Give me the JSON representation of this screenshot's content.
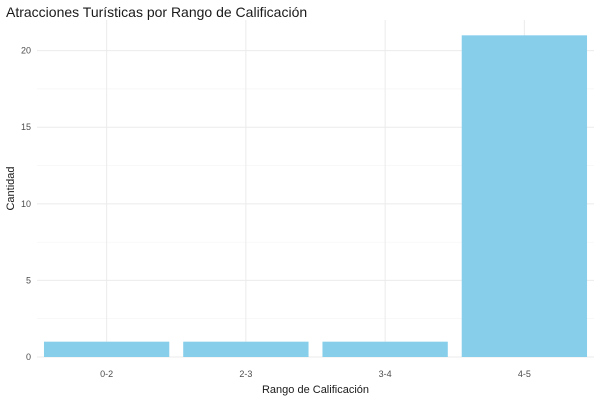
{
  "chart_data": {
    "type": "bar",
    "title": "Atracciones Turísticas por Rango de Calificación",
    "xlabel": "Rango de Calificación",
    "ylabel": "Cantidad",
    "categories": [
      "0-2",
      "2-3",
      "3-4",
      "4-5"
    ],
    "values": [
      1,
      1,
      1,
      21
    ],
    "ylim": [
      0,
      22
    ],
    "yticks": [
      0,
      5,
      10,
      15,
      20
    ],
    "grid": true,
    "bar_color": "#87CEEB"
  }
}
